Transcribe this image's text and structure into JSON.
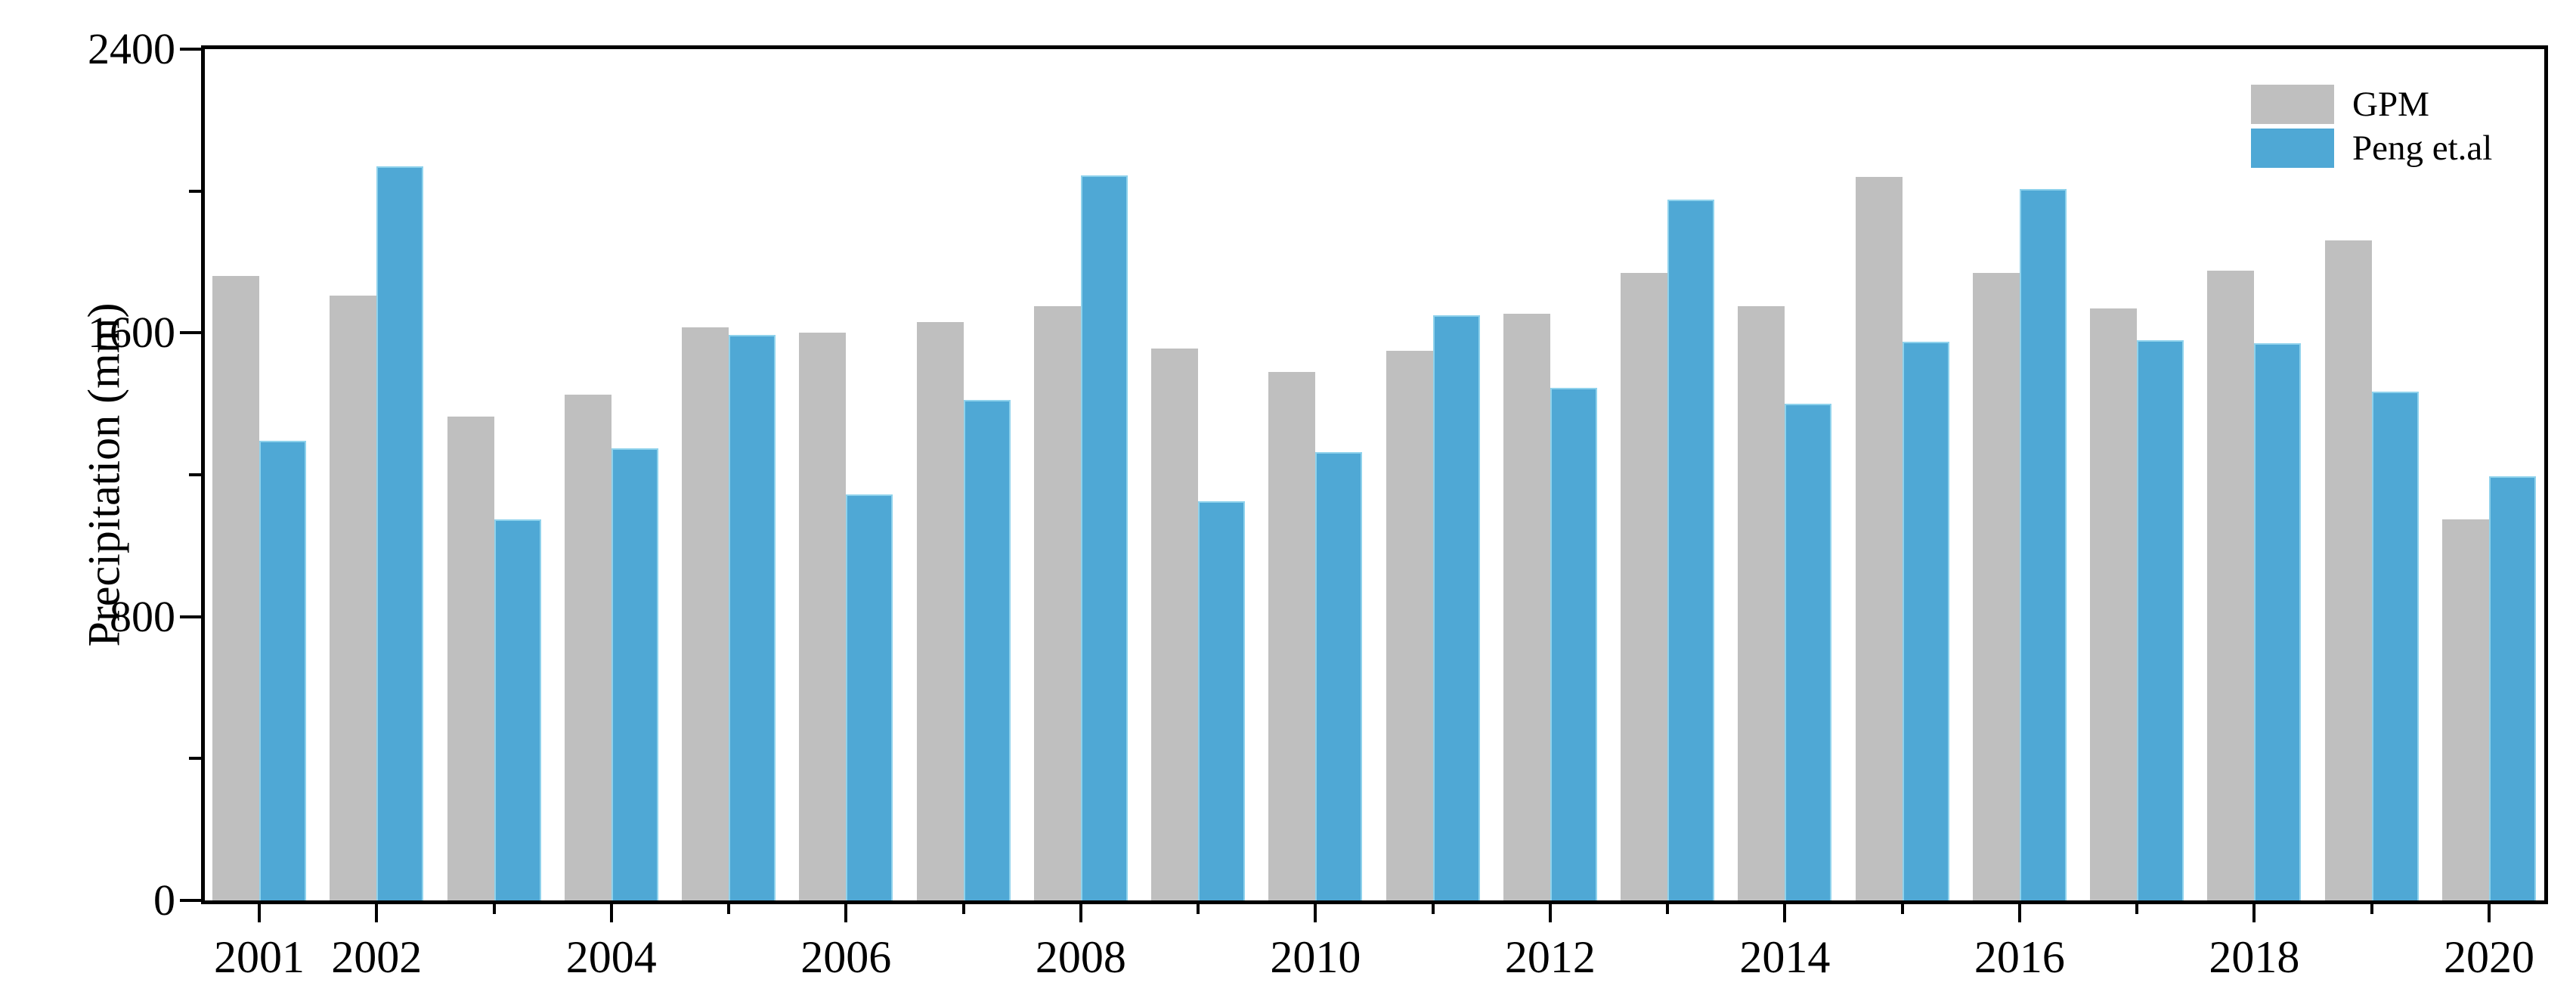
{
  "figure": {
    "background": "#ffffff",
    "axis_color": "#000000",
    "ylabel": "Precipitation (mm)"
  },
  "legend": {
    "position": "upper right",
    "items": [
      {
        "label": "GPM",
        "color": "#bfbfbf"
      },
      {
        "label": "Peng et.al",
        "color": "#4fa8d5"
      }
    ]
  },
  "chart_data": {
    "type": "bar",
    "title": "",
    "xlabel": "",
    "ylabel": "Precipitation (mm)",
    "grid": false,
    "legend_position": "upper right",
    "ylim": [
      0,
      2400
    ],
    "yticks_major": [
      0,
      800,
      1600,
      2400
    ],
    "yticks_minor": [
      400,
      1200,
      2000
    ],
    "xticks_labeled": [
      2001,
      2002,
      2004,
      2006,
      2008,
      2010,
      2012,
      2014,
      2016,
      2018,
      2020
    ],
    "xticks_minor": [
      2003,
      2005,
      2007,
      2009,
      2011,
      2013,
      2015,
      2017,
      2019
    ],
    "categories": [
      2001,
      2002,
      2003,
      2004,
      2005,
      2006,
      2007,
      2008,
      2009,
      2010,
      2011,
      2012,
      2013,
      2014,
      2015,
      2016,
      2017,
      2018,
      2019,
      2020
    ],
    "series": [
      {
        "name": "GPM",
        "color": "#bfbfbf",
        "values": [
          1760,
          1705,
          1365,
          1425,
          1615,
          1600,
          1630,
          1675,
          1555,
          1490,
          1550,
          1655,
          1770,
          1675,
          2040,
          1770,
          1670,
          1775,
          1860,
          1075
        ]
      },
      {
        "name": "Peng et.al",
        "color": "#4fa8d5",
        "values": [
          1295,
          2070,
          1075,
          1275,
          1595,
          1145,
          1410,
          2045,
          1125,
          1265,
          1650,
          1445,
          1975,
          1400,
          1575,
          2005,
          1580,
          1570,
          1435,
          1195
        ]
      }
    ]
  }
}
